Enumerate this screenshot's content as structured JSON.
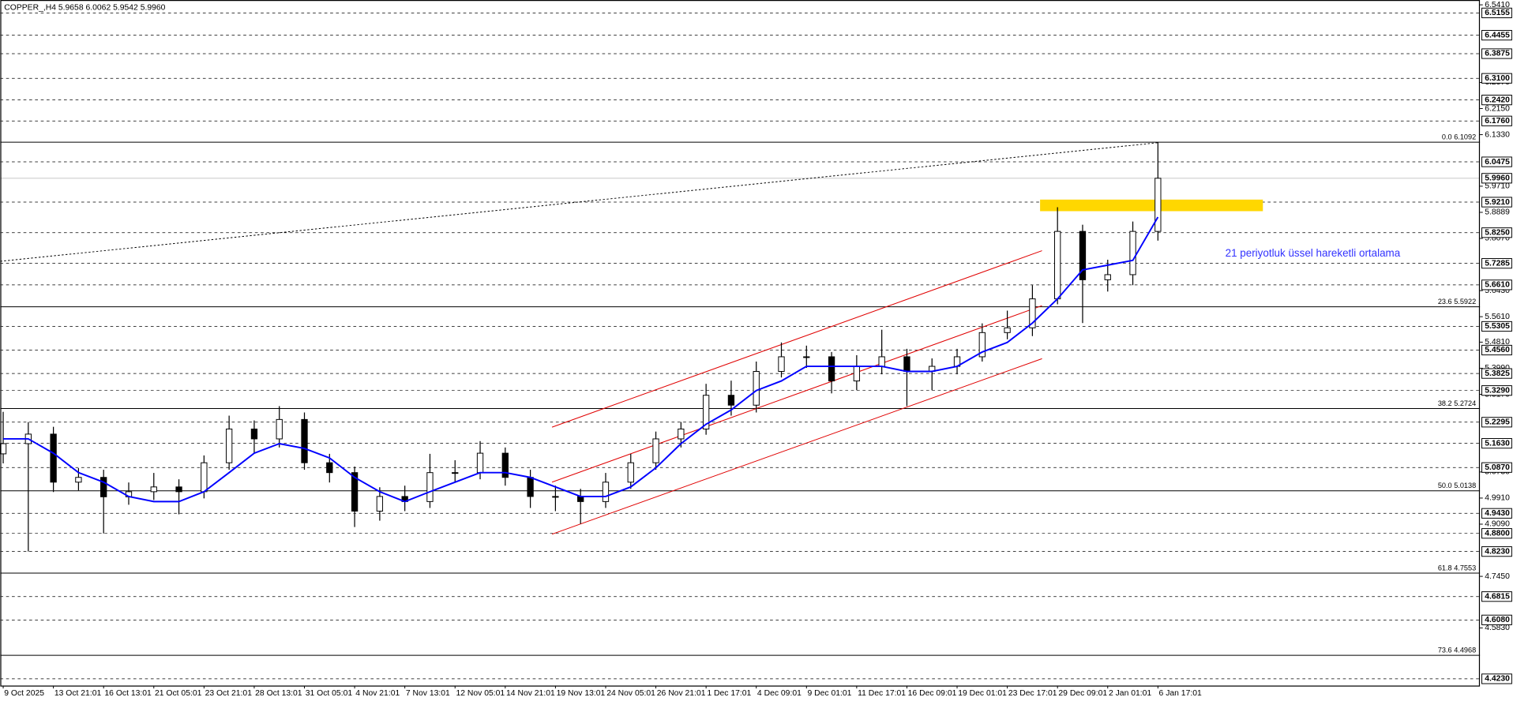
{
  "chart_data": {
    "type": "candlestick",
    "title": "COPPER_,H4  5.9658 6.0062 5.9542 5.9960",
    "annotation": "21 periyotluk üssel hareketli ortalama",
    "xlim": [
      0,
      470
    ],
    "ylim": [
      4.423,
      6.541
    ],
    "xticks": [
      {
        "value": 0,
        "label": "9 Oct 2025"
      },
      {
        "value": 16,
        "label": "13 Oct 21:01"
      },
      {
        "value": 32,
        "label": "16 Oct 13:01"
      },
      {
        "value": 48,
        "label": "21 Oct 05:01"
      },
      {
        "value": 64,
        "label": "23 Oct 21:01"
      },
      {
        "value": 80,
        "label": "28 Oct 13:01"
      },
      {
        "value": 96,
        "label": "31 Oct 05:01"
      },
      {
        "value": 112,
        "label": "4 Nov 21:01"
      },
      {
        "value": 128,
        "label": "7 Nov 13:01"
      },
      {
        "value": 144,
        "label": "12 Nov 05:01"
      },
      {
        "value": 160,
        "label": "14 Nov 21:01"
      },
      {
        "value": 176,
        "label": "19 Nov 13:01"
      },
      {
        "value": 192,
        "label": "24 Nov 05:01"
      },
      {
        "value": 208,
        "label": "26 Nov 21:01"
      },
      {
        "value": 224,
        "label": "1 Dec 17:01"
      },
      {
        "value": 240,
        "label": "4 Dec 09:01"
      },
      {
        "value": 256,
        "label": "9 Dec 01:01"
      },
      {
        "value": 272,
        "label": "11 Dec 17:01"
      },
      {
        "value": 288,
        "label": "16 Dec 09:01"
      },
      {
        "value": 304,
        "label": "19 Dec 01:01"
      },
      {
        "value": 320,
        "label": "23 Dec 17:01"
      },
      {
        "value": 336,
        "label": "29 Dec 09:01"
      },
      {
        "value": 352,
        "label": "2 Jan 01:01"
      },
      {
        "value": 368,
        "label": "6 Jan 17:01"
      }
    ],
    "yticks": [
      {
        "value": 6.541,
        "label": "6.5410"
      },
      {
        "value": 6.297,
        "label": "6.2970"
      },
      {
        "value": 6.215,
        "label": "6.2150"
      },
      {
        "value": 6.133,
        "label": "6.1330"
      },
      {
        "value": 5.971,
        "label": "5.9710"
      },
      {
        "value": 5.8889,
        "label": "5.8889"
      },
      {
        "value": 5.807,
        "label": "5.8070"
      },
      {
        "value": 5.643,
        "label": "5.6430"
      },
      {
        "value": 5.561,
        "label": "5.5610"
      },
      {
        "value": 5.481,
        "label": "5.4810"
      },
      {
        "value": 5.399,
        "label": "5.3990"
      },
      {
        "value": 5.317,
        "label": "5.3170"
      },
      {
        "value": 5.073,
        "label": "5.0730"
      },
      {
        "value": 4.991,
        "label": "4.9910"
      },
      {
        "value": 4.909,
        "label": "4.9090"
      },
      {
        "value": 4.745,
        "label": "4.7450"
      },
      {
        "value": 4.583,
        "label": "4.5830"
      }
    ],
    "levels": [
      {
        "value": 6.5155,
        "label": "6.5155"
      },
      {
        "value": 6.4455,
        "label": "6.4455"
      },
      {
        "value": 6.3875,
        "label": "6.3875"
      },
      {
        "value": 6.31,
        "label": "6.3100"
      },
      {
        "value": 6.242,
        "label": "6.2420"
      },
      {
        "value": 6.176,
        "label": "6.1760"
      },
      {
        "value": 6.0475,
        "label": "6.0475"
      },
      {
        "value": 5.921,
        "label": "5.9210"
      },
      {
        "value": 5.825,
        "label": "5.8250"
      },
      {
        "value": 5.7285,
        "label": "5.7285"
      },
      {
        "value": 5.661,
        "label": "5.6610"
      },
      {
        "value": 5.5305,
        "label": "5.5305"
      },
      {
        "value": 5.456,
        "label": "5.4560"
      },
      {
        "value": 5.3825,
        "label": "5.3825"
      },
      {
        "value": 5.329,
        "label": "5.3290"
      },
      {
        "value": 5.2295,
        "label": "5.2295"
      },
      {
        "value": 5.163,
        "label": "5.1630"
      },
      {
        "value": 5.087,
        "label": "5.0870"
      },
      {
        "value": 4.943,
        "label": "4.9430"
      },
      {
        "value": 4.88,
        "label": "4.8800"
      },
      {
        "value": 4.823,
        "label": "4.8230"
      },
      {
        "value": 4.6815,
        "label": "4.6815"
      },
      {
        "value": 4.608,
        "label": "4.6080"
      },
      {
        "value": 4.423,
        "label": "4.4230"
      }
    ],
    "current_price": {
      "value": 5.996,
      "label": "5.9960"
    },
    "fibonacci": [
      {
        "value": 6.1092,
        "label": "0.0 6.1092"
      },
      {
        "value": 5.5922,
        "label": "23.6 5.5922"
      },
      {
        "value": 5.2724,
        "label": "38.2 5.2724"
      },
      {
        "value": 5.0138,
        "label": "50.0 5.0138"
      },
      {
        "value": 4.7553,
        "label": "61.8 4.7553"
      },
      {
        "value": 4.4968,
        "label": "73.6 4.4968"
      }
    ],
    "x": [
      0,
      8,
      16,
      24,
      32,
      40,
      48,
      56,
      64,
      72,
      80,
      88,
      96,
      104,
      112,
      120,
      128,
      136,
      144,
      152,
      160,
      168,
      176,
      184,
      192,
      200,
      208,
      216,
      224,
      232,
      240,
      248,
      256,
      264,
      272,
      280,
      288,
      296,
      304,
      312,
      320,
      328,
      336,
      344,
      352,
      360,
      368
    ],
    "open": [
      5.13,
      5.162,
      5.192,
      5.041,
      5.056,
      4.995,
      5.011,
      5.026,
      5.011,
      5.102,
      5.208,
      5.177,
      5.238,
      5.102,
      5.071,
      4.95,
      4.996,
      4.98,
      5.071,
      5.071,
      5.132,
      5.056,
      4.996,
      4.996,
      4.98,
      5.041,
      5.102,
      5.177,
      5.208,
      5.314,
      5.283,
      5.389,
      5.435,
      5.435,
      5.359,
      5.405,
      5.435,
      5.389,
      5.405,
      5.435,
      5.511,
      5.526,
      5.617,
      5.829,
      5.677,
      5.693,
      5.829
    ],
    "high": [
      5.262,
      5.23,
      5.215,
      5.085,
      5.08,
      5.04,
      5.07,
      5.05,
      5.125,
      5.25,
      5.235,
      5.28,
      5.26,
      5.13,
      5.09,
      5.025,
      5.03,
      5.13,
      5.11,
      5.17,
      5.15,
      5.08,
      5.03,
      5.02,
      5.07,
      5.13,
      5.2,
      5.23,
      5.35,
      5.36,
      5.42,
      5.48,
      5.47,
      5.45,
      5.44,
      5.52,
      5.46,
      5.43,
      5.46,
      5.54,
      5.58,
      5.66,
      5.905,
      5.85,
      5.74,
      5.86,
      6.109
    ],
    "low": [
      5.1,
      4.823,
      5.01,
      5.015,
      4.88,
      4.97,
      4.985,
      4.94,
      4.99,
      5.08,
      5.13,
      5.15,
      5.08,
      5.04,
      4.9,
      4.92,
      4.95,
      4.96,
      5.04,
      5.05,
      5.03,
      4.96,
      4.95,
      4.91,
      4.96,
      5.02,
      5.08,
      5.15,
      5.19,
      5.25,
      5.26,
      5.37,
      5.4,
      5.32,
      5.33,
      5.38,
      5.28,
      5.33,
      5.38,
      5.42,
      5.49,
      5.5,
      5.6,
      5.541,
      5.64,
      5.66,
      5.8
    ],
    "close": [
      5.162,
      5.192,
      5.041,
      5.056,
      4.995,
      5.011,
      5.026,
      5.011,
      5.102,
      5.208,
      5.177,
      5.238,
      5.102,
      5.071,
      4.95,
      4.996,
      4.98,
      5.071,
      5.071,
      5.132,
      5.056,
      4.996,
      4.996,
      4.98,
      5.041,
      5.102,
      5.177,
      5.208,
      5.314,
      5.283,
      5.389,
      5.435,
      5.435,
      5.359,
      5.405,
      5.435,
      5.389,
      5.405,
      5.435,
      5.511,
      5.526,
      5.617,
      5.829,
      5.677,
      5.693,
      5.829,
      5.996
    ],
    "ema": {
      "color": "#0000ff",
      "values": [
        5.177,
        5.177,
        5.132,
        5.071,
        5.041,
        4.996,
        4.98,
        4.98,
        5.011,
        5.071,
        5.132,
        5.162,
        5.147,
        5.117,
        5.056,
        5.011,
        4.98,
        5.011,
        5.041,
        5.071,
        5.071,
        5.056,
        5.026,
        4.996,
        4.996,
        5.026,
        5.086,
        5.162,
        5.223,
        5.268,
        5.329,
        5.359,
        5.405,
        5.405,
        5.405,
        5.405,
        5.389,
        5.389,
        5.405,
        5.45,
        5.48,
        5.541,
        5.617,
        5.708,
        5.723,
        5.738,
        5.874
      ]
    }
  }
}
